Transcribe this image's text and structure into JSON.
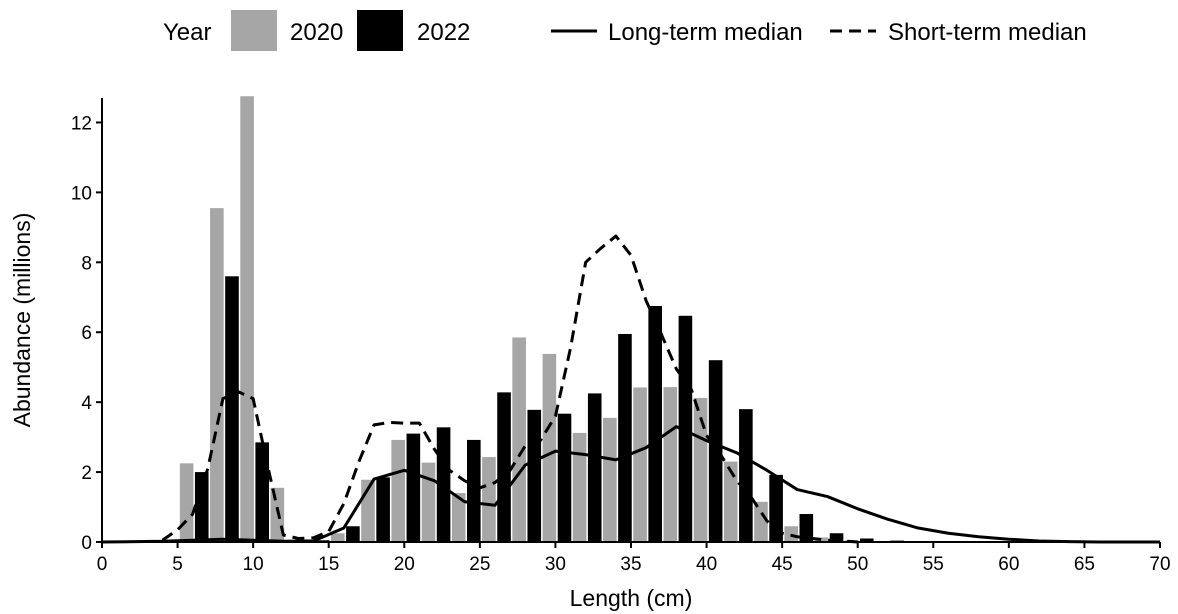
{
  "chart_data": {
    "type": "bar",
    "xlabel": "Length (cm)",
    "ylabel": "Abundance (millions)",
    "xlim": [
      0,
      70
    ],
    "ylim": [
      0,
      12.7
    ],
    "xticks": [
      0,
      5,
      10,
      15,
      20,
      25,
      30,
      35,
      40,
      45,
      50,
      55,
      60,
      65,
      70
    ],
    "yticks": [
      0,
      2,
      4,
      6,
      8,
      10,
      12
    ],
    "grid": false,
    "legend": {
      "position": "top",
      "bar_title": "Year",
      "line_entries": [
        "Long-term median",
        "Short-term median"
      ]
    },
    "bar_width_cm": 0.9,
    "series": [
      {
        "name": "2020",
        "kind": "bar",
        "color": "#a6a6a6",
        "x": [
          5.6,
          7.6,
          9.6,
          11.6,
          13.6,
          15.6,
          17.6,
          19.6,
          21.6,
          23.6,
          25.6,
          27.6,
          29.6,
          31.6,
          33.6,
          35.6,
          37.6,
          39.6,
          41.6,
          43.6,
          45.6,
          47.6,
          49.6
        ],
        "values": [
          2.25,
          9.55,
          12.75,
          1.55,
          0.08,
          0.25,
          1.78,
          2.92,
          2.27,
          1.4,
          2.43,
          5.85,
          5.38,
          3.12,
          3.55,
          4.42,
          4.43,
          4.12,
          2.3,
          1.15,
          0.45,
          0.13,
          0.05
        ]
      },
      {
        "name": "2022",
        "kind": "bar",
        "color": "#000000",
        "x": [
          6.6,
          8.6,
          10.6,
          12.6,
          14.6,
          16.6,
          18.6,
          20.6,
          22.6,
          24.6,
          26.6,
          28.6,
          30.6,
          32.6,
          34.6,
          36.6,
          38.6,
          40.6,
          42.6,
          44.6,
          46.6,
          48.6,
          50.6,
          52.6
        ],
        "values": [
          2.0,
          7.6,
          2.85,
          0.05,
          0.05,
          0.45,
          1.85,
          3.1,
          3.28,
          2.92,
          4.28,
          3.78,
          3.67,
          4.25,
          5.95,
          6.75,
          6.47,
          5.2,
          3.8,
          1.92,
          0.8,
          0.25,
          0.1,
          0.04
        ]
      },
      {
        "name": "Long-term median",
        "kind": "line",
        "style": "solid",
        "color": "#000000",
        "x": [
          0,
          4,
          6,
          8,
          10,
          12,
          14,
          16,
          18,
          20,
          22,
          24,
          26,
          28,
          30,
          32,
          34,
          36,
          38,
          40,
          42,
          44,
          46,
          48,
          50,
          52,
          54,
          56,
          58,
          60,
          62,
          64,
          66,
          68,
          70
        ],
        "values": [
          0,
          0.02,
          0.05,
          0.08,
          0.05,
          0.02,
          0.03,
          0.4,
          1.8,
          2.05,
          1.75,
          1.15,
          1.05,
          2.2,
          2.6,
          2.5,
          2.35,
          2.7,
          3.3,
          2.9,
          2.55,
          2.05,
          1.5,
          1.3,
          0.95,
          0.65,
          0.4,
          0.25,
          0.15,
          0.08,
          0.03,
          0.01,
          0,
          0,
          0
        ]
      },
      {
        "name": "Short-term median",
        "kind": "line",
        "style": "dashed",
        "color": "#000000",
        "x": [
          4,
          5,
          6,
          7,
          8,
          9,
          10,
          11,
          12,
          13,
          14,
          15,
          16,
          17,
          18,
          19,
          20,
          21,
          22,
          23,
          24,
          25,
          26,
          27,
          28,
          29,
          30,
          31,
          32,
          33,
          34,
          35,
          36,
          37,
          38,
          39,
          40,
          41,
          42,
          43,
          44,
          45,
          46,
          47,
          48,
          49,
          50
        ],
        "values": [
          0.05,
          0.35,
          0.8,
          2.1,
          4.1,
          4.3,
          4.1,
          2.1,
          0.2,
          0.1,
          0.12,
          0.3,
          1.1,
          2.3,
          3.35,
          3.42,
          3.4,
          3.4,
          2.65,
          2.05,
          1.75,
          1.55,
          1.7,
          2.05,
          2.75,
          2.9,
          3.6,
          5.55,
          8.0,
          8.4,
          8.75,
          8.2,
          6.9,
          5.95,
          4.95,
          4.35,
          3.05,
          2.45,
          1.75,
          1.25,
          0.6,
          0.25,
          0.15,
          0.1,
          0.05,
          0.03,
          0
        ]
      }
    ]
  }
}
